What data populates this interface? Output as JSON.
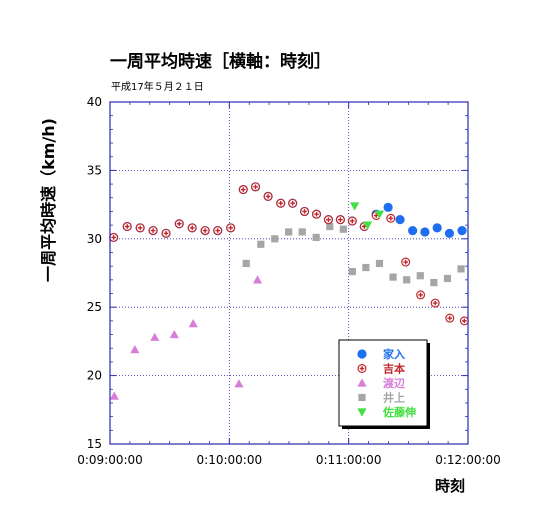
{
  "chart_data": {
    "type": "scatter",
    "title": "一周平均時速［横軸：時刻］",
    "subtitle": "平成17年５月２１日",
    "xlabel": "時刻",
    "ylabel": "一周平均時速（km/h)",
    "xlim": [
      "0:09:00:00",
      "0:12:00:00"
    ],
    "ylim": [
      15,
      40
    ],
    "x_ticks": [
      "0:09:00:00",
      "0:10:00:00",
      "0:11:00:00",
      "0:12:00:00"
    ],
    "y_ticks": [
      "15",
      "20",
      "25",
      "30",
      "35",
      "40"
    ],
    "grid": "dotted, every 1 hour and every 5 km/h",
    "legend_position": "bottom-right, inside plot",
    "series": [
      {
        "name": "家入",
        "color": "#1e6ff0",
        "marker": "circle",
        "points": [
          [
            "0:09:01:50",
            30.1
          ],
          [
            "0:09:08:40",
            30.9
          ],
          [
            "0:09:15:10",
            30.8
          ],
          [
            "0:09:21:40",
            30.6
          ],
          [
            "0:09:28:10",
            30.4
          ],
          [
            "0:09:34:50",
            31.1
          ],
          [
            "0:09:41:20",
            30.8
          ],
          [
            "0:09:47:50",
            30.6
          ],
          [
            "0:09:54:10",
            30.6
          ],
          [
            "0:10:00:40",
            30.8
          ],
          [
            "0:10:07:00",
            33.6
          ],
          [
            "0:10:13:10",
            33.8
          ],
          [
            "0:10:19:30",
            33.1
          ],
          [
            "0:10:25:50",
            32.6
          ],
          [
            "0:10:31:50",
            32.6
          ],
          [
            "0:10:37:50",
            32.0
          ],
          [
            "0:10:43:50",
            31.8
          ],
          [
            "0:10:49:50",
            31.4
          ],
          [
            "0:10:55:50",
            31.4
          ],
          [
            "0:11:01:50",
            31.3
          ],
          [
            "0:11:07:50",
            30.9
          ],
          [
            "0:11:13:50",
            31.8
          ],
          [
            "0:11:19:50",
            32.3
          ],
          [
            "0:11:25:50",
            31.4
          ],
          [
            "0:11:32:10",
            30.6
          ],
          [
            "0:11:38:20",
            30.5
          ],
          [
            "0:11:44:30",
            30.8
          ],
          [
            "0:11:50:40",
            30.4
          ],
          [
            "0:11:57:00",
            30.6
          ]
        ]
      },
      {
        "name": "吉本",
        "color": "#c0282d",
        "marker": "cross",
        "points": [
          [
            "0:09:01:50",
            30.1
          ],
          [
            "0:09:08:40",
            30.9
          ],
          [
            "0:09:15:10",
            30.8
          ],
          [
            "0:09:21:40",
            30.6
          ],
          [
            "0:09:28:10",
            30.4
          ],
          [
            "0:09:34:50",
            31.1
          ],
          [
            "0:09:41:20",
            30.8
          ],
          [
            "0:09:47:50",
            30.6
          ],
          [
            "0:09:54:10",
            30.6
          ],
          [
            "0:10:00:40",
            30.8
          ],
          [
            "0:10:07:00",
            33.6
          ],
          [
            "0:10:13:10",
            33.8
          ],
          [
            "0:10:19:30",
            33.1
          ],
          [
            "0:10:25:50",
            32.6
          ],
          [
            "0:10:31:50",
            32.6
          ],
          [
            "0:10:37:50",
            32.0
          ],
          [
            "0:10:43:50",
            31.8
          ],
          [
            "0:10:49:50",
            31.4
          ],
          [
            "0:10:55:50",
            31.4
          ],
          [
            "0:11:01:50",
            31.3
          ],
          [
            "0:11:07:50",
            30.9
          ],
          [
            "0:11:13:50",
            31.7
          ],
          [
            "0:11:21:10",
            31.5
          ],
          [
            "0:11:28:40",
            28.3
          ],
          [
            "0:11:36:10",
            25.9
          ],
          [
            "0:11:43:30",
            25.3
          ],
          [
            "0:11:50:50",
            24.2
          ],
          [
            "0:11:58:10",
            24.0
          ]
        ]
      },
      {
        "name": "渡辺",
        "color": "#d87ed8",
        "marker": "triangle-up",
        "points": [
          [
            "0:09:02:10",
            18.5
          ],
          [
            "0:09:12:30",
            21.9
          ],
          [
            "0:09:22:30",
            22.8
          ],
          [
            "0:09:32:20",
            23.0
          ],
          [
            "0:09:41:50",
            23.8
          ],
          [
            "0:10:04:50",
            19.4
          ],
          [
            "0:10:14:10",
            27.0
          ]
        ]
      },
      {
        "name": "井上",
        "color": "#a6a6a6",
        "marker": "square",
        "points": [
          [
            "0:10:08:30",
            28.2
          ],
          [
            "0:10:15:50",
            29.6
          ],
          [
            "0:10:22:50",
            30.0
          ],
          [
            "0:10:29:50",
            30.5
          ],
          [
            "0:10:36:40",
            30.5
          ],
          [
            "0:10:43:40",
            30.1
          ],
          [
            "0:10:50:30",
            30.9
          ],
          [
            "0:10:57:20",
            30.7
          ],
          [
            "0:11:01:50",
            27.6
          ],
          [
            "0:11:08:40",
            27.9
          ],
          [
            "0:11:15:30",
            28.2
          ],
          [
            "0:11:22:20",
            27.2
          ],
          [
            "0:11:29:10",
            27.0
          ],
          [
            "0:11:36:00",
            27.3
          ],
          [
            "0:11:42:50",
            26.8
          ],
          [
            "0:11:49:40",
            27.1
          ],
          [
            "0:11:56:30",
            27.8
          ]
        ]
      },
      {
        "name": "佐藤伸",
        "color": "#3fe03f",
        "marker": "triangle-down",
        "points": [
          [
            "0:11:03:00",
            32.4
          ],
          [
            "0:11:09:30",
            31.0
          ],
          [
            "0:11:15:30",
            31.8
          ]
        ]
      }
    ]
  }
}
